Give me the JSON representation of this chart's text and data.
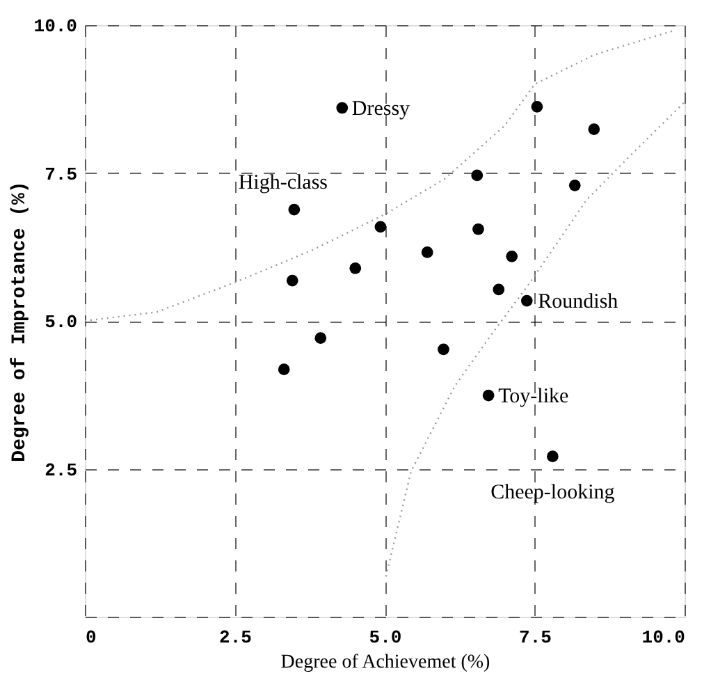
{
  "chart_data": {
    "type": "scatter",
    "xlabel": "Degree of Achievemet (%)",
    "ylabel": "Degree of Improtance (%)",
    "xlim": [
      0,
      10
    ],
    "ylim": [
      0,
      10
    ],
    "xticks": [
      {
        "value": 0,
        "label": "0"
      },
      2.5,
      {
        "value": 5,
        "label": "5.0"
      },
      7.5,
      {
        "value": 10,
        "label": "10.0"
      }
    ],
    "yticks": [
      {
        "value": 0,
        "label": null
      },
      2.5,
      {
        "value": 5,
        "label": "5.0"
      },
      7.5,
      {
        "value": 10,
        "label": "10.0"
      }
    ],
    "grid": true,
    "marker": "circle",
    "series": [
      {
        "color": "#000000",
        "x": [
          4.29,
          7.54,
          8.49,
          6.54,
          8.17,
          3.49,
          4.93,
          6.56,
          5.71,
          7.12,
          3.46,
          4.51,
          6.9,
          7.37,
          3.93,
          5.98,
          3.32,
          6.73,
          7.8
        ],
        "values": [
          8.6,
          8.62,
          8.24,
          7.46,
          7.29,
          6.88,
          6.59,
          6.55,
          6.16,
          6.09,
          5.68,
          5.89,
          5.53,
          5.34,
          4.71,
          4.52,
          4.18,
          3.74,
          2.71
        ]
      },
      {
        "type": "line",
        "color": "#999999",
        "line_style": "dotted",
        "marker": "none",
        "x": [
          0,
          1.2,
          2.5,
          3.8,
          5,
          6,
          7,
          7.5,
          8.5,
          9.8
        ],
        "values": [
          5.0,
          5.15,
          5.65,
          6.2,
          6.8,
          7.4,
          8.3,
          9.0,
          9.5,
          9.9
        ]
      },
      {
        "type": "line",
        "color": "#999999",
        "line_style": "dotted",
        "marker": "none",
        "x": [
          5.02,
          5.44,
          6.17,
          6.8,
          7.39,
          8.37,
          9.2,
          10
        ],
        "values": [
          0.68,
          2.46,
          3.9,
          4.8,
          5.6,
          7.05,
          7.9,
          8.7
        ]
      }
    ],
    "annotations": [
      {
        "text": "Dressy",
        "x": 4.29,
        "y": 8.6
      },
      {
        "text": "High-class",
        "x": 3.49,
        "y": 6.88
      },
      {
        "text": "Roundish",
        "x": 7.37,
        "y": 5.34
      },
      {
        "text": "Toy-like",
        "x": 6.73,
        "y": 3.74
      },
      {
        "text": "Cheep-looking",
        "x": 7.8,
        "y": 2.71
      }
    ]
  }
}
